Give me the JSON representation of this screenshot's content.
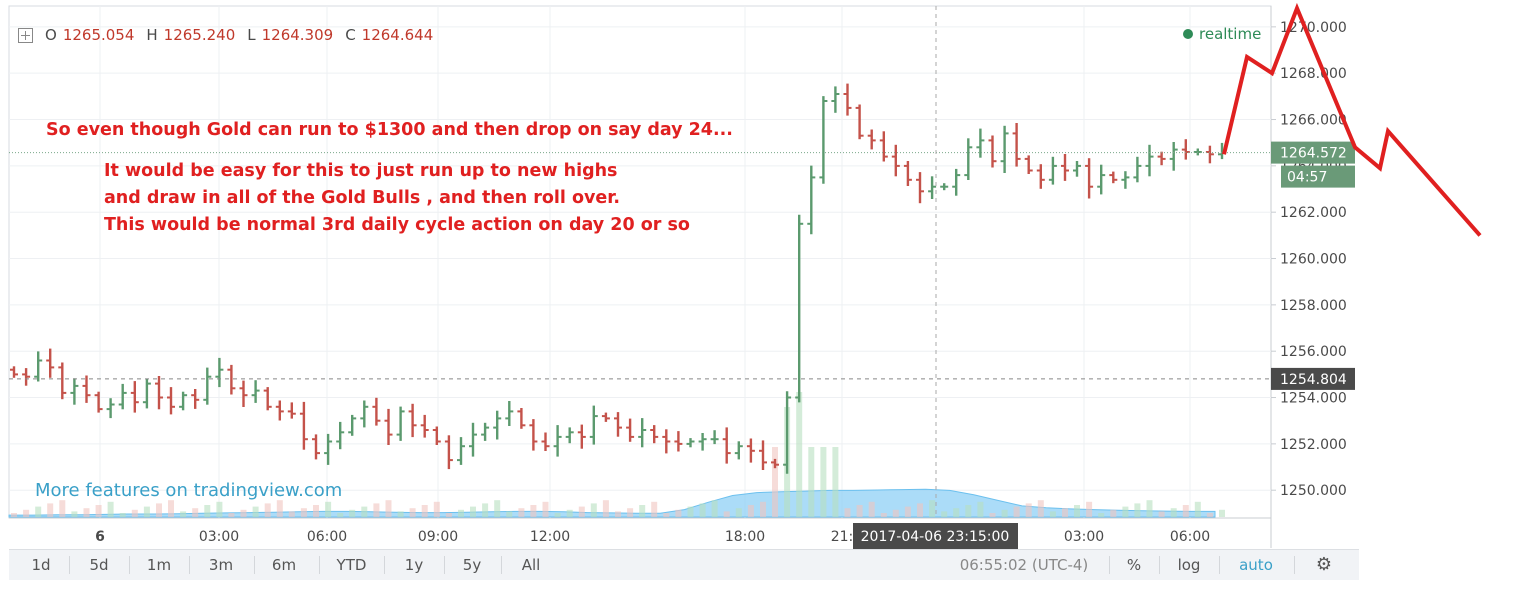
{
  "legend": {
    "o_label": "O",
    "o": "1265.054",
    "h_label": "H",
    "h": "1265.240",
    "l_label": "L",
    "l": "1264.309",
    "c_label": "C",
    "c": "1264.644"
  },
  "realtime_label": "realtime",
  "annotations": {
    "line1": "So even though Gold can run to $1300 and then drop on say day 24...",
    "line2": "It would be easy for this to just run up to new highs",
    "line3": "and draw in all of the Gold Bulls , and then roll over.",
    "line4": "This would be normal 3rd daily cycle action on day 20 or so"
  },
  "watermark": "More features on tradingview.com",
  "toolbar": {
    "ranges": [
      "1d",
      "5d",
      "1m",
      "3m",
      "6m",
      "YTD",
      "1y",
      "5y",
      "All"
    ],
    "clock": "06:55:02 (UTC-4)",
    "percent": "%",
    "log": "log",
    "auto": "auto"
  },
  "colors": {
    "up": "#5b9a6e",
    "down": "#c4524a",
    "annotation": "#e02020",
    "volume_area": "#8fd0f5",
    "price_tag_bg": "#6a9a78",
    "crosshair_tag_bg": "#4a4a4a"
  },
  "chart_data": {
    "type": "candlestick",
    "y_axis": {
      "ticks": [
        "1270.000",
        "1268.000",
        "1266.000",
        "1264.000",
        "1262.000",
        "1260.000",
        "1258.000",
        "1256.000",
        "1254.000",
        "1252.000",
        "1250.000"
      ],
      "ylim": [
        1248.8,
        1270.9
      ]
    },
    "x_axis": {
      "ticks": [
        "6",
        "03:00",
        "06:00",
        "09:00",
        "12:00",
        "18:00",
        "21:",
        "03:00",
        "06:00"
      ]
    },
    "price_label": "1264.572",
    "countdown_label": "04:57",
    "crosshair_price": "1254.804",
    "crosshair_time": "2017-04-06 23:15:00",
    "current_price": 1264.572,
    "crosshair_y": 1254.804,
    "ohlc_last": {
      "o": 1265.054,
      "h": 1265.24,
      "l": 1264.309,
      "c": 1264.644
    },
    "close_path": [
      1255.0,
      1254.9,
      1255.6,
      1255.3,
      1254.2,
      1254.5,
      1254.1,
      1253.5,
      1253.7,
      1254.2,
      1253.8,
      1254.6,
      1254.0,
      1253.6,
      1254.1,
      1253.9,
      1254.9,
      1255.2,
      1254.4,
      1254.1,
      1254.3,
      1253.6,
      1253.4,
      1253.3,
      1252.2,
      1251.6,
      1252.1,
      1252.5,
      1253.1,
      1253.6,
      1253.0,
      1252.4,
      1253.4,
      1252.8,
      1252.6,
      1252.1,
      1251.3,
      1251.9,
      1252.4,
      1252.7,
      1253.1,
      1253.4,
      1252.8,
      1252.1,
      1251.9,
      1252.3,
      1252.5,
      1252.3,
      1253.2,
      1253.1,
      1252.7,
      1252.3,
      1252.6,
      1252.3,
      1252.1,
      1252.0,
      1252.1,
      1252.2,
      1252.2,
      1251.6,
      1251.9,
      1251.7,
      1251.2,
      1251.1,
      1254.0,
      1261.5,
      1263.5,
      1266.8,
      1267.1,
      1266.5,
      1265.3,
      1265.1,
      1264.4,
      1264.0,
      1263.4,
      1262.9,
      1263.1,
      1263.1,
      1263.6,
      1264.8,
      1265.1,
      1264.2,
      1265.4,
      1264.3,
      1263.8,
      1263.4,
      1264.0,
      1263.8,
      1264.0,
      1263.1,
      1263.6,
      1263.4,
      1263.5,
      1264.0,
      1264.4,
      1264.3,
      1264.7,
      1264.6,
      1264.6,
      1264.5,
      1264.6
    ],
    "projection": [
      [
        1224,
        1264.5
      ],
      [
        1247,
        1268.7
      ],
      [
        1272,
        1268.0
      ],
      [
        1297,
        1270.8
      ],
      [
        1355,
        1264.8
      ],
      [
        1380,
        1263.9
      ],
      [
        1388,
        1265.5
      ],
      [
        1480,
        1261.0
      ]
    ],
    "volume_area": [
      0.05,
      0.05,
      0.06,
      0.06,
      0.07,
      0.08,
      0.08,
      0.09,
      0.1,
      0.11,
      0.12,
      0.13,
      0.14,
      0.15,
      0.15,
      0.14,
      0.13,
      0.12,
      0.12,
      0.13,
      0.14,
      0.15,
      0.15,
      0.14,
      0.12,
      0.11,
      0.1,
      0.1,
      0.2,
      0.4,
      0.58,
      0.66,
      0.68,
      0.7,
      0.72,
      0.72,
      0.73,
      0.74,
      0.75,
      0.72,
      0.6,
      0.45,
      0.3,
      0.25,
      0.22,
      0.2,
      0.18,
      0.17,
      0.16,
      0.15,
      0.15
    ]
  }
}
